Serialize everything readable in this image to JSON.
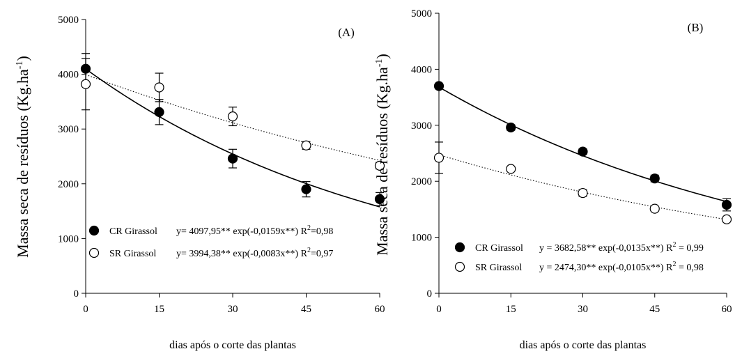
{
  "chart_data": [
    {
      "type": "scatter",
      "panel_label": "(A)",
      "xlabel": "dias após o corte das plantas",
      "ylabel": "Massa seca de resíduos (Kg.ha",
      "ylabel_sup": "-1",
      "ylabel_close": ")",
      "xlim": [
        0,
        60
      ],
      "ylim": [
        0,
        5000
      ],
      "xticks": [
        0,
        15,
        30,
        45,
        60
      ],
      "yticks": [
        0,
        1000,
        2000,
        3000,
        4000,
        5000
      ],
      "legend_position": "bottom-left",
      "series": [
        {
          "name": "CR Girassol",
          "marker": "filled-circle",
          "line_style": "solid",
          "x": [
            0,
            15,
            30,
            45,
            60
          ],
          "y": [
            4100,
            3310,
            2460,
            1900,
            1720
          ],
          "err": [
            280,
            230,
            170,
            140,
            120
          ],
          "fit": {
            "a": 4097.95,
            "b": 0.0159
          },
          "legend_label": "CR Girassol",
          "eq_text": "y= 4097,95** exp(-0,0159x**) R",
          "r2_sup": "2",
          "r2_text": "=0,98"
        },
        {
          "name": "SR Girassol",
          "marker": "open-circle",
          "line_style": "dotted",
          "x": [
            0,
            15,
            30,
            45,
            60
          ],
          "y": [
            3820,
            3760,
            3230,
            2700,
            2330
          ],
          "err": [
            470,
            260,
            170,
            70,
            60
          ],
          "fit": {
            "a": 3994.38,
            "b": 0.0083
          },
          "legend_label": "SR Girassol",
          "eq_text": "y= 3994,38** exp(-0,0083x**) R",
          "r2_sup": "2",
          "r2_text": "=0,97"
        }
      ]
    },
    {
      "type": "scatter",
      "panel_label": "(B)",
      "xlabel": "dias após o corte das plantas",
      "ylabel": "Massa seca de resíduos (Kg.ha",
      "ylabel_sup": "-1",
      "ylabel_close": ")",
      "xlim": [
        0,
        60
      ],
      "ylim": [
        0,
        5000
      ],
      "xticks": [
        0,
        15,
        30,
        45,
        60
      ],
      "yticks": [
        0,
        1000,
        2000,
        3000,
        4000,
        5000
      ],
      "legend_position": "bottom-left",
      "series": [
        {
          "name": "CR Girassol",
          "marker": "filled-circle",
          "line_style": "solid",
          "x": [
            0,
            15,
            30,
            45,
            60
          ],
          "y": [
            3700,
            2960,
            2530,
            2050,
            1580
          ],
          "err": [
            50,
            50,
            50,
            60,
            110
          ],
          "fit": {
            "a": 3682.58,
            "b": 0.0135
          },
          "legend_label": "CR Girassol",
          "eq_text": "y = 3682,58** exp(-0,0135x**) R",
          "r2_sup": "2",
          "r2_text": " = 0,99"
        },
        {
          "name": "SR Girassol",
          "marker": "open-circle",
          "line_style": "dotted",
          "x": [
            0,
            15,
            30,
            45,
            60
          ],
          "y": [
            2420,
            2220,
            1790,
            1510,
            1320
          ],
          "err": [
            280,
            40,
            60,
            40,
            40
          ],
          "fit": {
            "a": 2474.3,
            "b": 0.0105
          },
          "legend_label": "SR Girassol",
          "eq_text": "y = 2474,30** exp(-0,0105x**) R",
          "r2_sup": "2",
          "r2_text": " = 0,98"
        }
      ]
    }
  ]
}
